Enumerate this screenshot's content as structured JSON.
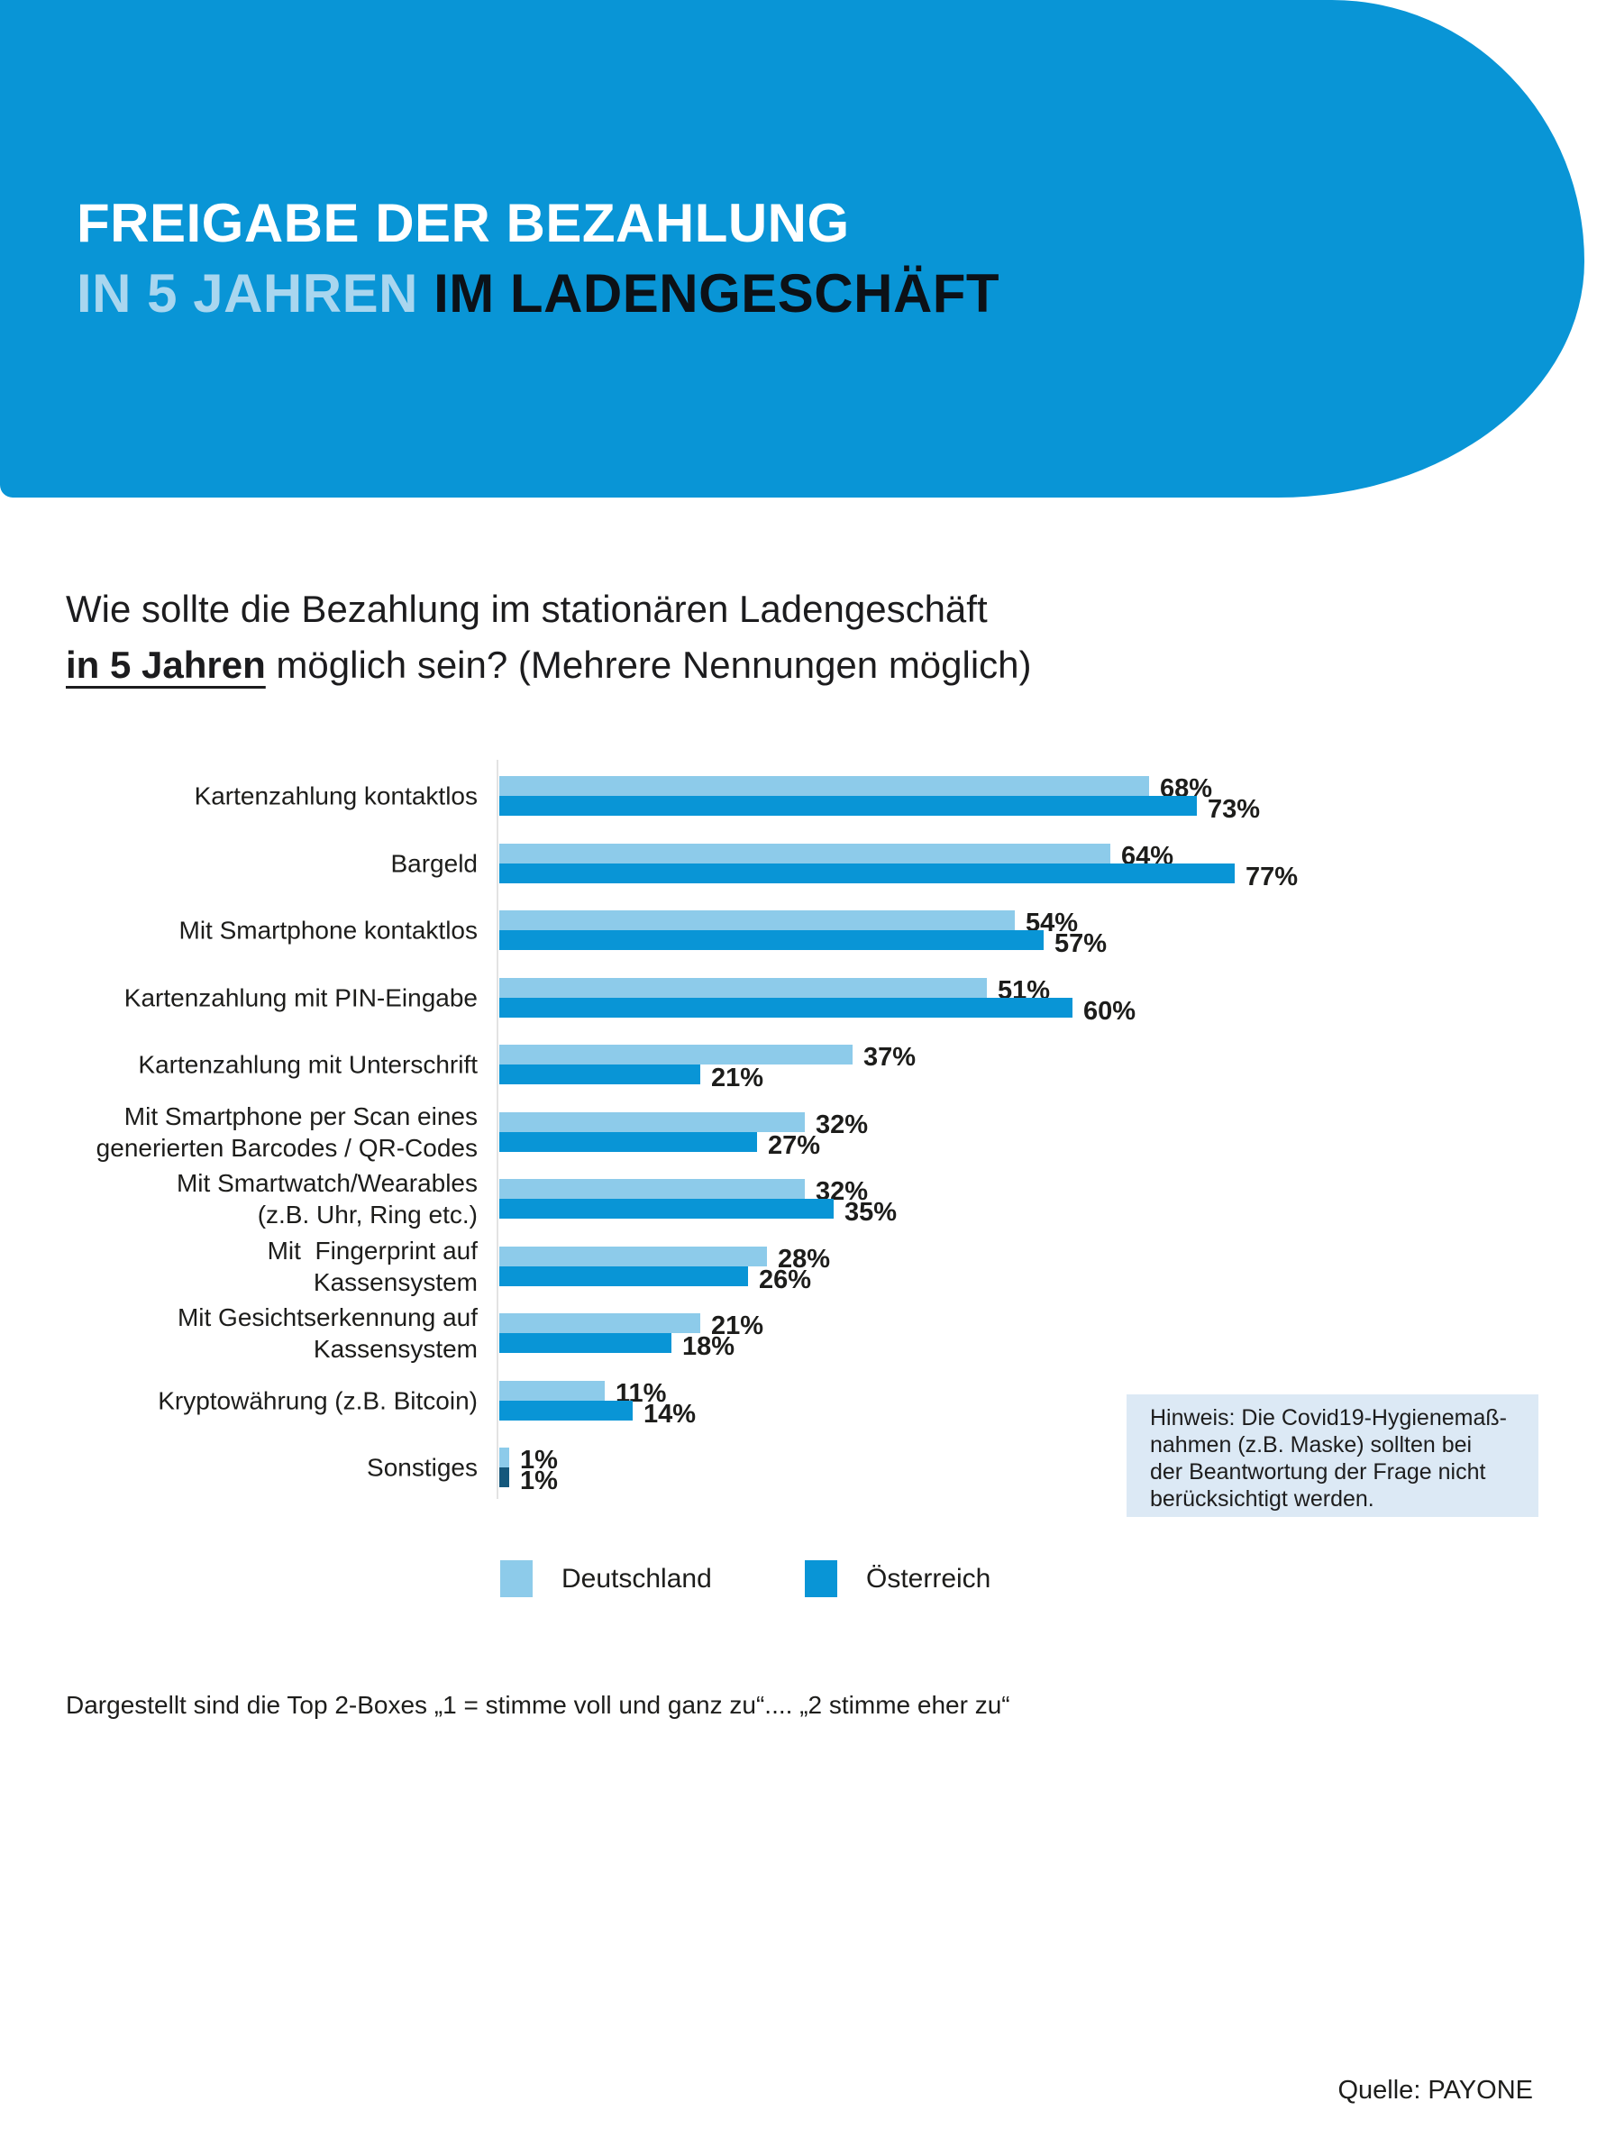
{
  "colors": {
    "brand_blue": "#0995D6",
    "light_blue": "#8DCBEA",
    "title_light_blue": "#A9D6EF",
    "title_dark": "#0c1117",
    "note_bg": "#DCE9F5",
    "sonstiges_dark": "#15587C"
  },
  "header": {
    "title_line1": "FREIGABE DER BEZAHLUNG",
    "title_line2_light": "IN 5 JAHREN",
    "title_line2_dark": " IM LADENGESCHÄFT"
  },
  "question": {
    "line1": "Wie sollte die Bezahlung im stationären Ladengeschäft",
    "line2_emphasis": "in 5 Jahren",
    "line2_rest": " möglich sein? (Mehrere Nennungen möglich)"
  },
  "chart_data": {
    "type": "bar",
    "orientation": "horizontal",
    "unit": "%",
    "xlim": [
      0,
      80
    ],
    "grid": false,
    "legend_position": "bottom",
    "categories": [
      [
        "Kartenzahlung kontaktlos"
      ],
      [
        "Bargeld"
      ],
      [
        "Mit Smartphone kontaktlos"
      ],
      [
        "Kartenzahlung mit PIN-Eingabe"
      ],
      [
        "Kartenzahlung mit Unterschrift"
      ],
      [
        "Mit Smartphone per Scan eines",
        "generierten Barcodes / QR-Codes"
      ],
      [
        "Mit Smartwatch/Wearables",
        "(z.B. Uhr, Ring etc.)"
      ],
      [
        "Mit  Fingerprint auf",
        "Kassensystem"
      ],
      [
        "Mit Gesichtserkennung auf",
        "Kassensystem"
      ],
      [
        "Kryptowährung (z.B. Bitcoin)"
      ],
      [
        "Sonstiges"
      ]
    ],
    "series": [
      {
        "name": "Deutschland",
        "color": "#8DCBEA",
        "values": [
          68,
          64,
          54,
          51,
          37,
          32,
          32,
          28,
          21,
          11,
          1
        ]
      },
      {
        "name": "Österreich",
        "color": "#0995D6",
        "last_bar_color": "#15587C",
        "values": [
          73,
          77,
          57,
          60,
          21,
          27,
          35,
          26,
          18,
          14,
          1
        ]
      }
    ]
  },
  "legend": [
    {
      "label": "Deutschland",
      "color": "#8DCBEA"
    },
    {
      "label": "Österreich",
      "color": "#0995D6"
    }
  ],
  "note": {
    "lines": [
      "Hinweis: Die Covid19-Hygienemaß-",
      "nahmen (z.B. Maske) sollten bei",
      "der Beantwortung der Frage nicht",
      "berücksichtigt werden."
    ]
  },
  "footnote": "Dargestellt sind die Top 2-Boxes „1 = stimme voll und ganz zu“.... „2 stimme eher zu“",
  "source": "Quelle: PAYONE"
}
